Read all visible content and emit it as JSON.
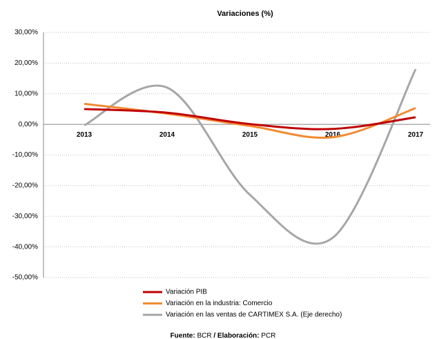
{
  "chart_data": {
    "type": "line",
    "title": "Variaciones (%)",
    "categories": [
      "2013",
      "2014",
      "2015",
      "2016",
      "2017"
    ],
    "series": [
      {
        "name": "Variación PIB",
        "color": "#c00000",
        "values": [
          5.0,
          3.8,
          0.1,
          -1.5,
          2.3
        ]
      },
      {
        "name": "Variación en la industria: Comercio",
        "color": "#f28a30",
        "values": [
          6.7,
          3.5,
          -0.5,
          -4.2,
          5.3
        ]
      },
      {
        "name": "Variación en las ventas de CARTIMEX S.A. (Eje derecho)",
        "color": "#a6a6a6",
        "values": [
          -0.3,
          12.0,
          -23.0,
          -37.0,
          18.0
        ]
      }
    ],
    "ylim": [
      -50,
      30
    ],
    "yticks": [
      {
        "value": -50,
        "label": "-50,00%"
      },
      {
        "value": -40,
        "label": "-40,00%"
      },
      {
        "value": -30,
        "label": "-30,00%"
      },
      {
        "value": -20,
        "label": "-20,00%"
      },
      {
        "value": -10,
        "label": "-10,00%"
      },
      {
        "value": 0,
        "label": "0,00%"
      },
      {
        "value": 10,
        "label": "10,00%"
      },
      {
        "value": 20,
        "label": "20,00%"
      },
      {
        "value": 30,
        "label": "30,00%"
      }
    ],
    "grid": true,
    "legend": "bottom",
    "source": [
      "Fuente:",
      "BCR",
      "/ Elaboración:",
      "PCR"
    ]
  }
}
